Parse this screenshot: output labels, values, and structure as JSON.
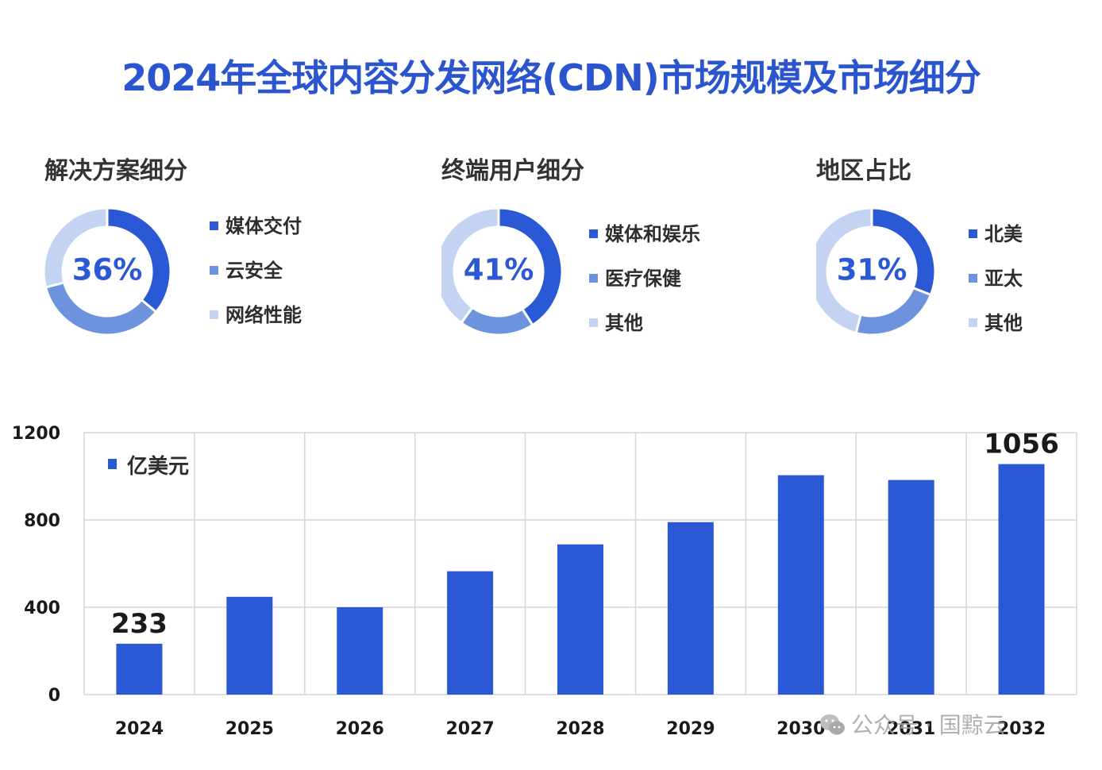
{
  "title": "2024年全球内容分发网络(CDN)市场规模及市场细分",
  "colors": {
    "dark": "#2b59d6",
    "mid": "#6d93df",
    "light": "#c4d3f1",
    "bar": "#2b59d6",
    "grid": "#d6d6d6",
    "title": "#2a55cf"
  },
  "donuts": [
    {
      "title": "解决方案细分",
      "center_label": "36%",
      "segments": [
        {
          "name": "媒体交付",
          "value": 36,
          "color": "#2b59d6"
        },
        {
          "name": "云安全",
          "value": 35,
          "color": "#6d93df"
        },
        {
          "name": "网络性能",
          "value": 29,
          "color": "#c4d3f1"
        }
      ]
    },
    {
      "title": "终端用户细分",
      "center_label": "41%",
      "segments": [
        {
          "name": "媒体和娱乐",
          "value": 41,
          "color": "#2b59d6"
        },
        {
          "name": "医疗保健",
          "value": 19,
          "color": "#6d93df"
        },
        {
          "name": "其他",
          "value": 40,
          "color": "#c4d3f1"
        }
      ]
    },
    {
      "title": "地区占比",
      "center_label": "31%",
      "segments": [
        {
          "name": "北美",
          "value": 31,
          "color": "#2b59d6"
        },
        {
          "name": "亚太",
          "value": 23,
          "color": "#6d93df"
        },
        {
          "name": "其他",
          "value": 46,
          "color": "#c4d3f1"
        }
      ]
    }
  ],
  "chart_data": {
    "type": "bar",
    "categories": [
      "2024",
      "2025",
      "2026",
      "2027",
      "2028",
      "2029",
      "2030",
      "2031",
      "2032"
    ],
    "values": [
      233,
      448,
      400,
      565,
      688,
      790,
      1005,
      983,
      1056
    ],
    "series": [
      {
        "name": "亿美元",
        "values": [
          233,
          448,
          400,
          565,
          688,
          790,
          1005,
          983,
          1056
        ]
      }
    ],
    "ylim": [
      0,
      1200
    ],
    "yticks": [
      0,
      400,
      800,
      1200
    ],
    "data_labels": [
      {
        "category": "2024",
        "text": "233"
      },
      {
        "category": "2032",
        "text": "1056"
      }
    ],
    "legend": "top-left",
    "grid": true
  },
  "watermark": {
    "text": "公众号 · 国黥云"
  }
}
